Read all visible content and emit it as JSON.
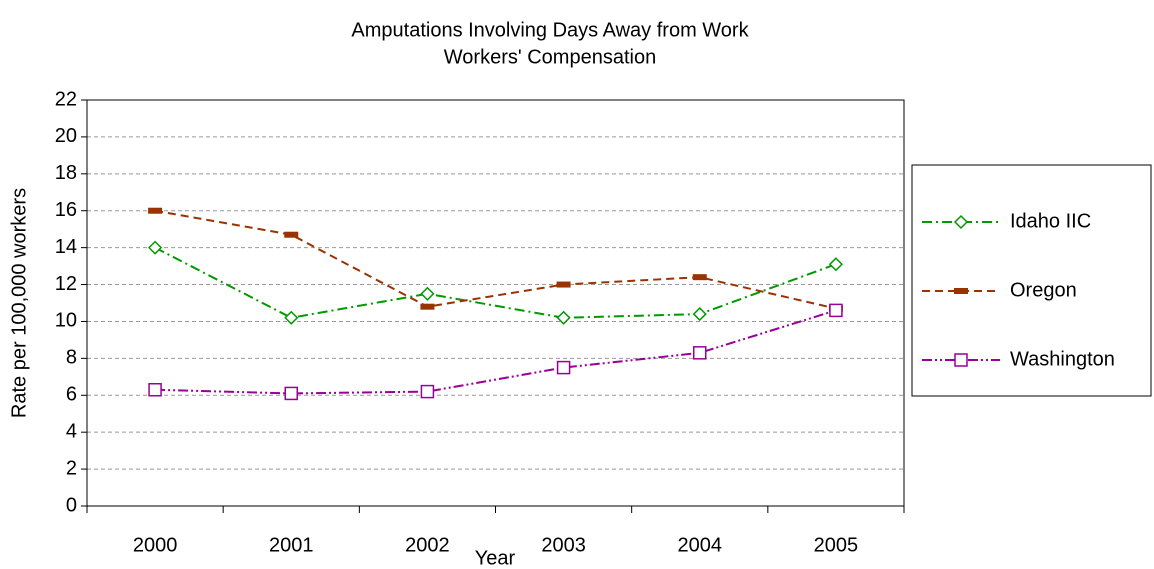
{
  "chart_data": {
    "type": "line",
    "title": "Amputations Involving Days Away from Work",
    "subtitle": "Workers' Compensation",
    "x_label": "Year",
    "y_label": "Rate per 100,000 workers",
    "categories": [
      "2000",
      "2001",
      "2002",
      "2003",
      "2004",
      "2005"
    ],
    "series": [
      {
        "name": "Idaho IIC",
        "color": "#009900",
        "marker": "diamond",
        "dash": "10,4,2,4",
        "values": [
          14.0,
          10.2,
          11.5,
          10.2,
          10.4,
          13.1
        ]
      },
      {
        "name": "Oregon",
        "color": "#993300",
        "marker": "bar",
        "dash": "8,5",
        "values": [
          16.0,
          14.7,
          10.8,
          12.0,
          12.4,
          10.7
        ]
      },
      {
        "name": "Washington",
        "color": "#990099",
        "marker": "square",
        "dash": "10,3,2,3,2,3",
        "values": [
          6.3,
          6.1,
          6.2,
          7.5,
          8.3,
          10.6
        ]
      }
    ],
    "ylim": [
      0,
      22
    ],
    "yticks": [
      0,
      2,
      4,
      6,
      8,
      10,
      12,
      14,
      16,
      18,
      20,
      22
    ],
    "grid": true,
    "legend": "right"
  }
}
